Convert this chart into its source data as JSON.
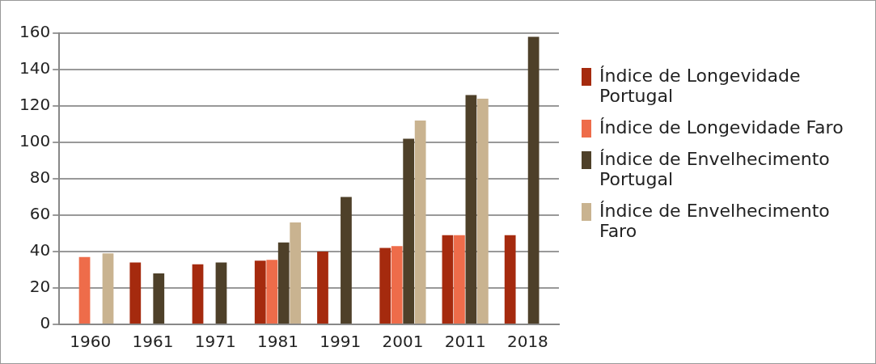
{
  "chart_data": {
    "type": "bar",
    "categories": [
      "1960",
      "1961",
      "1971",
      "1981",
      "1991",
      "2001",
      "2011",
      "2018"
    ],
    "series": [
      {
        "name": "Índice de Longevidade Portugal",
        "color": "#a52a0e",
        "values": [
          null,
          34,
          33,
          35,
          40,
          42,
          49,
          49
        ]
      },
      {
        "name": "Índice de Longevidade Faro",
        "color": "#ee6c4a",
        "values": [
          37,
          null,
          null,
          35.5,
          null,
          43,
          49,
          null
        ]
      },
      {
        "name": "Índice de Envelhecimento Portugal",
        "color": "#4e4029",
        "values": [
          null,
          28,
          34,
          45,
          70,
          102,
          126,
          158
        ]
      },
      {
        "name": "Índice de Envelhecimento Faro",
        "color": "#c9b390",
        "values": [
          39,
          null,
          null,
          56,
          null,
          112,
          124,
          null
        ]
      }
    ],
    "ylim": [
      0,
      160
    ],
    "yticks": [
      0,
      20,
      40,
      60,
      80,
      100,
      120,
      140,
      160
    ],
    "grid": "y",
    "legend": "right"
  }
}
